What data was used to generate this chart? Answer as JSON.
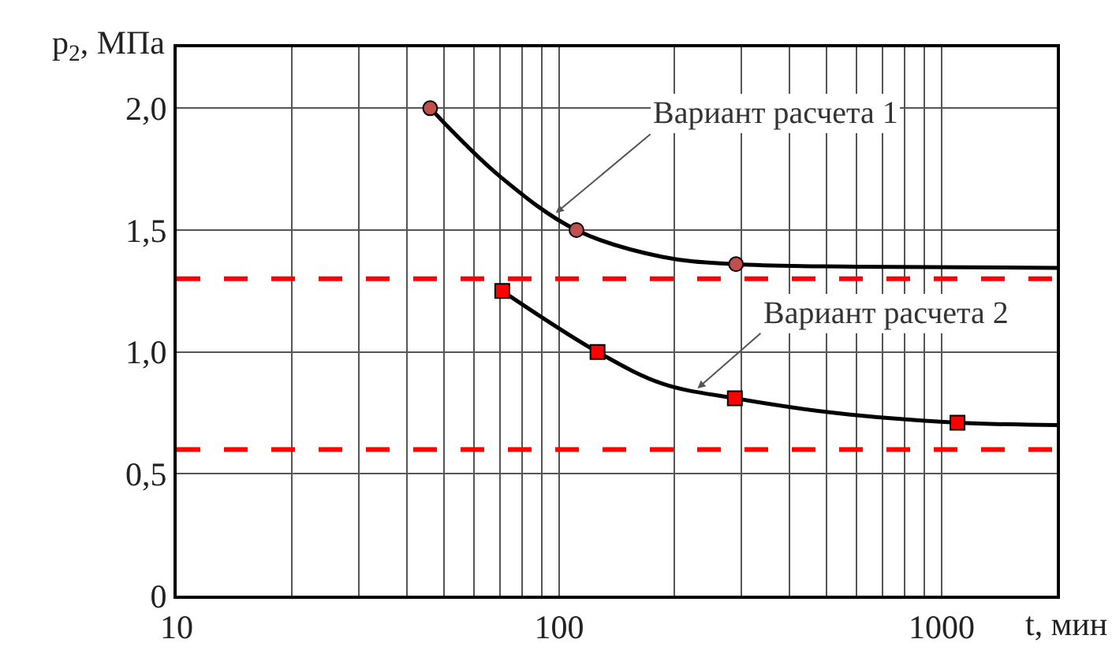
{
  "chart_data": {
    "type": "line",
    "xlabel": "t, мин",
    "ylabel": "p$_{2}$, МПа",
    "log": "x",
    "grid": true,
    "xlim": [
      10,
      2000
    ],
    "xticks": [
      10,
      {
        "value": 20,
        "label": null
      },
      {
        "value": 30,
        "label": null
      },
      {
        "value": 40,
        "label": null
      },
      {
        "value": 50,
        "label": null
      },
      {
        "value": 60,
        "label": null
      },
      {
        "value": 70,
        "label": null
      },
      {
        "value": 80,
        "label": null
      },
      {
        "value": 90,
        "label": null
      },
      100,
      {
        "value": 200,
        "label": null
      },
      {
        "value": 300,
        "label": null
      },
      {
        "value": 400,
        "label": null
      },
      {
        "value": 500,
        "label": null
      },
      {
        "value": 600,
        "label": null
      },
      {
        "value": 700,
        "label": null
      },
      {
        "value": 800,
        "label": null
      },
      {
        "value": 900,
        "label": null
      },
      1000
    ],
    "ylim": [
      0,
      2.25
    ],
    "yticks": [
      0,
      {
        "value": 0.5,
        "label": "0,5"
      },
      {
        "value": 1.0,
        "label": "1,0"
      },
      {
        "value": 1.5,
        "label": "1,5"
      },
      {
        "value": 2.0,
        "label": "2,0"
      }
    ],
    "series": [
      {
        "color": "#000000",
        "marker": "none",
        "x": [
          46,
          70,
          111,
          186,
          290,
          600,
          2000
        ],
        "values": [
          2.0,
          1.72,
          1.5,
          1.39,
          1.36,
          1.35,
          1.345
        ]
      },
      {
        "type": "scatter",
        "color": "#c0504d",
        "marker": "circle",
        "x": [
          46,
          111,
          290
        ],
        "values": [
          2.0,
          1.5,
          1.36
        ]
      },
      {
        "color": "#000000",
        "marker": "none",
        "x": [
          71,
          126,
          186,
          288,
          525,
          1100,
          2000
        ],
        "values": [
          1.25,
          1.0,
          0.87,
          0.81,
          0.75,
          0.71,
          0.7
        ]
      },
      {
        "type": "scatter",
        "color": "#ff0000",
        "marker": "square",
        "x": [
          71,
          126,
          288,
          1100
        ],
        "values": [
          1.25,
          1.0,
          0.81,
          0.71
        ]
      }
    ],
    "ref_lines": [
      {
        "axis": "y",
        "value": 1.3,
        "color": "#ff0000",
        "line_style": "dashed"
      },
      {
        "axis": "y",
        "value": 0.6,
        "color": "#ff0000",
        "line_style": "dashed"
      }
    ],
    "annotations": [
      {
        "text": "Вариант расчета 1",
        "x": 98,
        "y": 1.57
      },
      {
        "text": "Вариант расчета 2",
        "x": 230,
        "y": 0.85
      }
    ]
  }
}
